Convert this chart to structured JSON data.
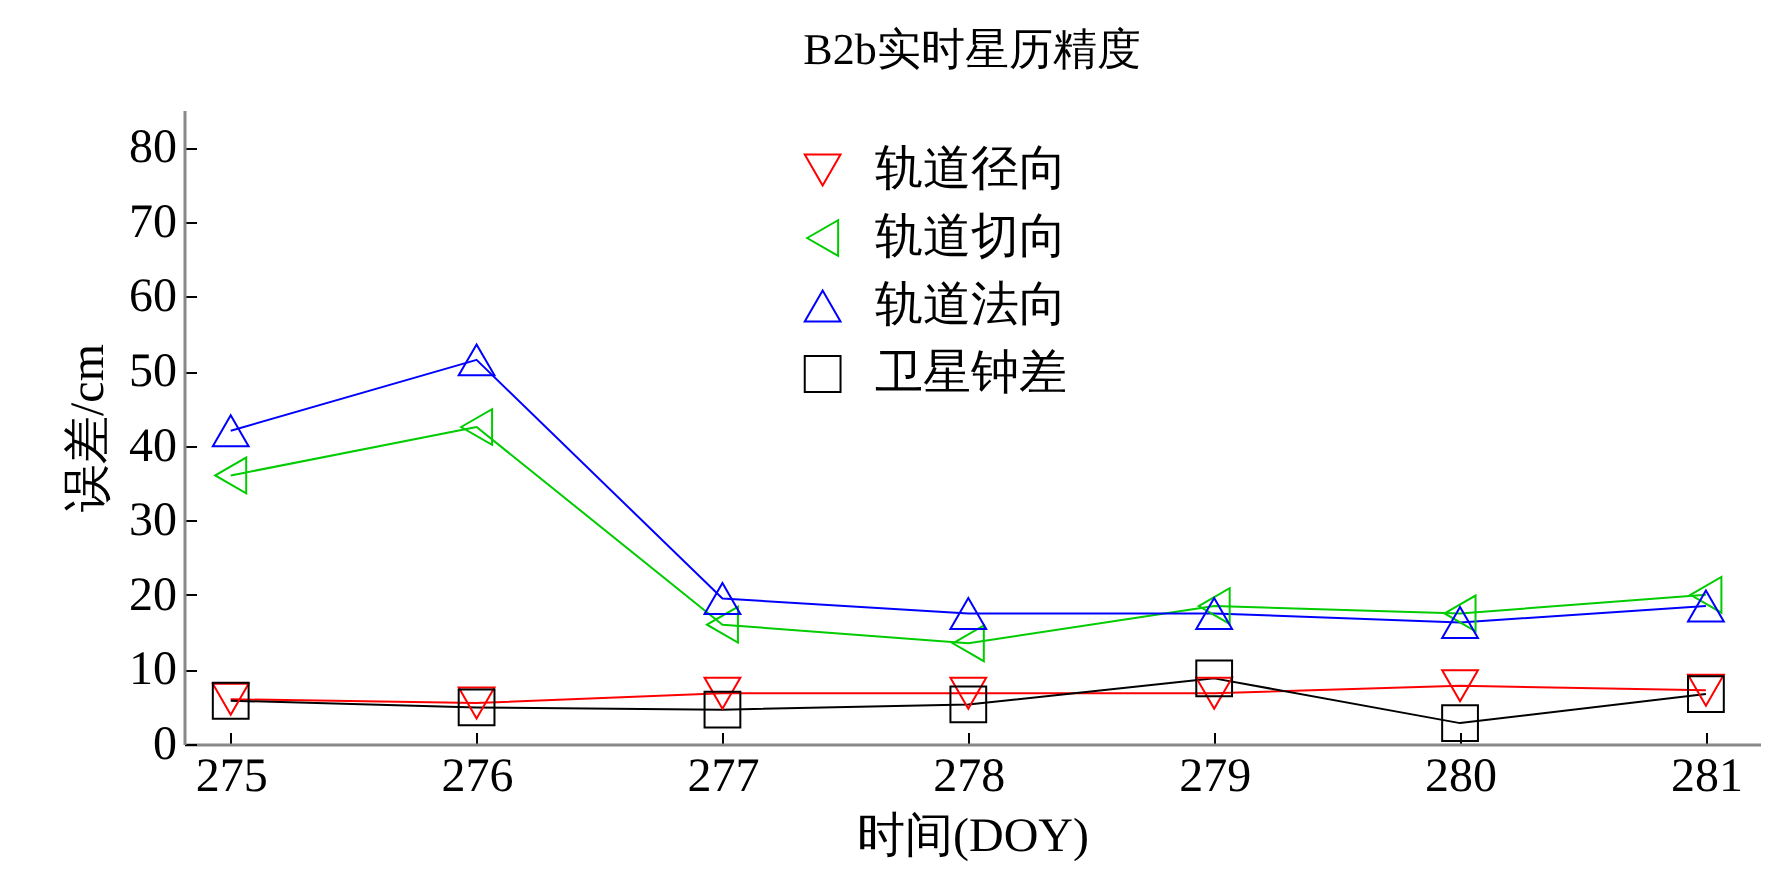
{
  "chart_data": {
    "type": "line",
    "title": "B2b实时星历精度",
    "xlabel": "时间(DOY)",
    "ylabel": "误差/cm",
    "x": [
      275,
      276,
      277,
      278,
      279,
      280,
      281
    ],
    "xlim": [
      274.81,
      281.22
    ],
    "xticks": [
      275,
      276,
      277,
      278,
      279,
      280,
      281
    ],
    "ylim": [
      0,
      85
    ],
    "yticks": [
      0,
      10,
      20,
      30,
      40,
      50,
      60,
      70,
      80
    ],
    "grid": false,
    "legend": "top",
    "line_style": "solid",
    "series": [
      {
        "name": "轨道径向",
        "color": "#ff0000",
        "marker": "triangle-down",
        "values": [
          6.0,
          5.5,
          6.8,
          6.8,
          6.8,
          7.8,
          7.2
        ]
      },
      {
        "name": "轨道切向",
        "color": "#00cc00",
        "marker": "triangle-left",
        "values": [
          36,
          42.5,
          16,
          13.5,
          18.5,
          17.5,
          20
        ]
      },
      {
        "name": "轨道法向",
        "color": "#0000ff",
        "marker": "triangle-up",
        "values": [
          42,
          51.5,
          19.5,
          17.5,
          17.5,
          16.3,
          18.5
        ]
      },
      {
        "name": "卫星钟差",
        "color": "#000000",
        "marker": "square",
        "values": [
          5.8,
          4.9,
          4.6,
          5.3,
          8.8,
          2.8,
          6.7
        ]
      }
    ]
  }
}
